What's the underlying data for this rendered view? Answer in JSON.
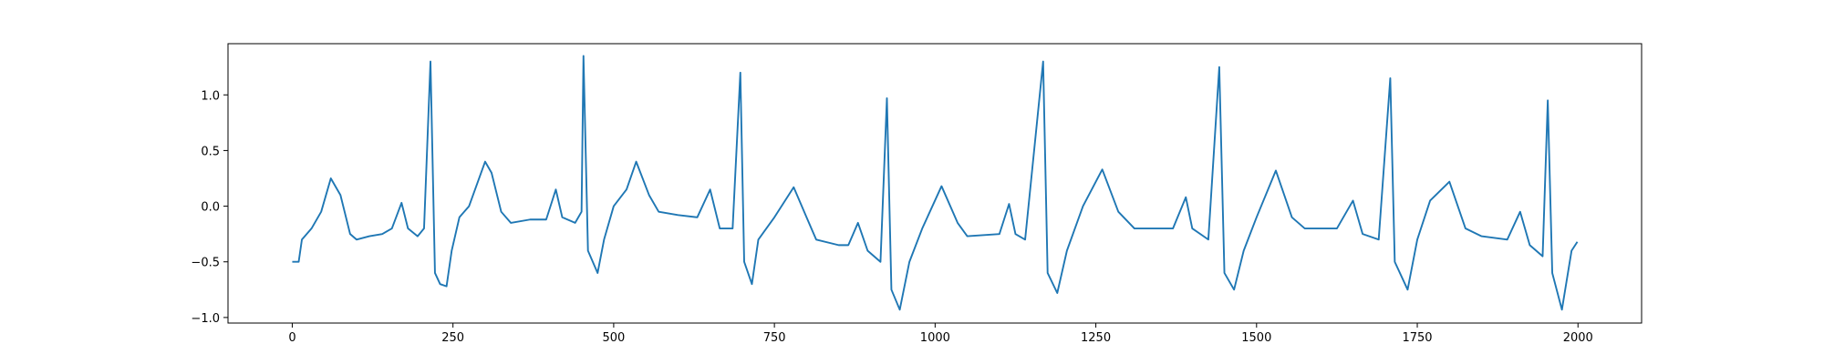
{
  "chart_data": {
    "type": "line",
    "color": "#1f77b4",
    "x": [
      0,
      10,
      15,
      30,
      45,
      60,
      75,
      90,
      100,
      120,
      140,
      155,
      170,
      180,
      195,
      205,
      215,
      222,
      230,
      240,
      248,
      260,
      275,
      300,
      310,
      325,
      340,
      370,
      395,
      410,
      420,
      440,
      450,
      453,
      460,
      475,
      485,
      500,
      520,
      535,
      555,
      570,
      600,
      630,
      650,
      665,
      685,
      697,
      703,
      715,
      725,
      750,
      780,
      800,
      815,
      850,
      865,
      880,
      895,
      915,
      925,
      932,
      945,
      960,
      980,
      1010,
      1035,
      1050,
      1100,
      1115,
      1125,
      1140,
      1168,
      1175,
      1190,
      1205,
      1230,
      1260,
      1285,
      1310,
      1370,
      1390,
      1400,
      1425,
      1442,
      1450,
      1465,
      1480,
      1500,
      1530,
      1555,
      1575,
      1625,
      1650,
      1665,
      1690,
      1708,
      1715,
      1735,
      1750,
      1770,
      1800,
      1825,
      1850,
      1890,
      1910,
      1925,
      1945,
      1953,
      1960,
      1975,
      1990,
      1999
    ],
    "values": [
      -0.5,
      -0.5,
      -0.3,
      -0.2,
      -0.05,
      0.25,
      0.1,
      -0.25,
      -0.3,
      -0.27,
      -0.25,
      -0.2,
      0.03,
      -0.2,
      -0.27,
      -0.2,
      1.3,
      -0.6,
      -0.7,
      -0.72,
      -0.4,
      -0.1,
      0.0,
      0.4,
      0.3,
      -0.05,
      -0.15,
      -0.12,
      -0.12,
      0.15,
      -0.1,
      -0.15,
      -0.05,
      1.35,
      -0.4,
      -0.6,
      -0.3,
      0.0,
      0.15,
      0.4,
      0.1,
      -0.05,
      -0.08,
      -0.1,
      0.15,
      -0.2,
      -0.2,
      1.2,
      -0.5,
      -0.7,
      -0.3,
      -0.1,
      0.17,
      -0.1,
      -0.3,
      -0.35,
      -0.35,
      -0.15,
      -0.4,
      -0.5,
      0.97,
      -0.75,
      -0.93,
      -0.5,
      -0.2,
      0.18,
      -0.15,
      -0.27,
      -0.25,
      0.02,
      -0.25,
      -0.3,
      1.3,
      -0.6,
      -0.78,
      -0.4,
      0.0,
      0.33,
      -0.05,
      -0.2,
      -0.2,
      0.08,
      -0.2,
      -0.3,
      1.25,
      -0.6,
      -0.75,
      -0.4,
      -0.1,
      0.32,
      -0.1,
      -0.2,
      -0.2,
      0.05,
      -0.25,
      -0.3,
      1.15,
      -0.5,
      -0.75,
      -0.3,
      0.05,
      0.22,
      -0.2,
      -0.27,
      -0.3,
      -0.05,
      -0.35,
      -0.45,
      0.95,
      -0.6,
      -0.93,
      -0.4,
      -0.32
    ],
    "xlim": [
      -99.95,
      2098.95
    ],
    "ylim": [
      -1.05,
      1.46
    ],
    "xticks": [
      0,
      250,
      500,
      750,
      1000,
      1250,
      1500,
      1750,
      2000
    ],
    "yticks": [
      {
        "value": -1.0,
        "label": "−1.0"
      },
      {
        "value": -0.5,
        "label": "−0.5"
      },
      {
        "value": 0.0,
        "label": "0.0"
      },
      {
        "value": 0.5,
        "label": "0.5"
      },
      {
        "value": 1.0,
        "label": "1.0"
      }
    ]
  }
}
